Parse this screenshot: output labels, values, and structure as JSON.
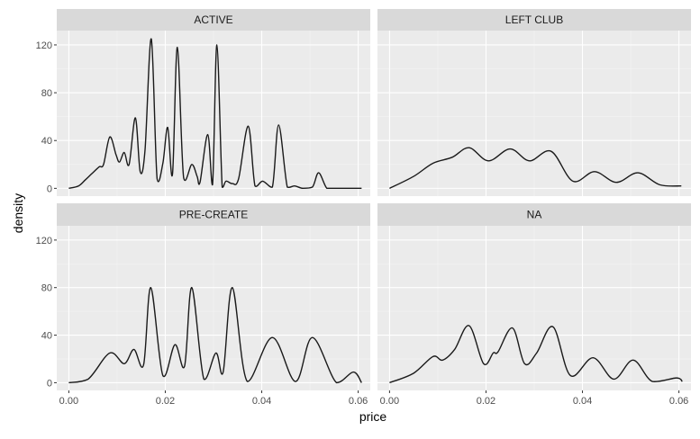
{
  "chart_data": {
    "type": "area",
    "kind": "density facets",
    "xlabel": "price",
    "ylabel": "density",
    "xlim": [
      -0.0025,
      0.0625
    ],
    "ylim": [
      -6.5,
      132
    ],
    "x_ticks": [
      0.0,
      0.02,
      0.04,
      0.06
    ],
    "x_tick_labels": [
      "0.00",
      "0.02",
      "0.04",
      "0.06"
    ],
    "y_ticks": [
      0,
      40,
      80,
      120
    ],
    "y_tick_labels": [
      "0",
      "40",
      "80",
      "120"
    ],
    "grid": true,
    "panels": [
      {
        "label": "ACTIVE",
        "x": [
          0.0,
          0.002,
          0.0034,
          0.0047,
          0.0063,
          0.0072,
          0.0085,
          0.0098,
          0.0105,
          0.0115,
          0.0125,
          0.0138,
          0.0148,
          0.0158,
          0.0171,
          0.0183,
          0.0195,
          0.0205,
          0.0215,
          0.0225,
          0.0238,
          0.0255,
          0.0266,
          0.0272,
          0.0288,
          0.0298,
          0.0307,
          0.0318,
          0.0326,
          0.0339,
          0.0352,
          0.0372,
          0.0386,
          0.0402,
          0.0422,
          0.0435,
          0.0453,
          0.0468,
          0.0485,
          0.0505,
          0.0518,
          0.0535,
          0.0552,
          0.0572,
          0.0594,
          0.0607
        ],
        "y": [
          0,
          2,
          7,
          12,
          18,
          20,
          43,
          28,
          22,
          30,
          20,
          59,
          14,
          32,
          125,
          8,
          21,
          51,
          12,
          118,
          9,
          20,
          10,
          5,
          45,
          3,
          120,
          1,
          6,
          4,
          8,
          52,
          2,
          6,
          1,
          53,
          1,
          2,
          0,
          1,
          13,
          0,
          0,
          0,
          0,
          0
        ]
      },
      {
        "label": "LEFT CLUB",
        "x": [
          0.0,
          0.005,
          0.009,
          0.013,
          0.0165,
          0.0205,
          0.025,
          0.029,
          0.0335,
          0.038,
          0.0425,
          0.047,
          0.0515,
          0.056,
          0.0605
        ],
        "y": [
          0,
          10,
          21,
          26,
          34,
          23,
          33,
          23,
          31,
          6,
          14,
          5,
          13,
          3,
          2
        ]
      },
      {
        "label": "PRE-CREATE",
        "x": [
          0.0,
          0.004,
          0.0085,
          0.0115,
          0.0135,
          0.0155,
          0.017,
          0.0195,
          0.022,
          0.024,
          0.0255,
          0.028,
          0.0305,
          0.032,
          0.0339,
          0.037,
          0.0422,
          0.047,
          0.0505,
          0.0555,
          0.059,
          0.0607
        ],
        "y": [
          0,
          3,
          25,
          16,
          28,
          15,
          80,
          6,
          32,
          14,
          80,
          3,
          25,
          9,
          80,
          1,
          38,
          1,
          38,
          0,
          9,
          0
        ],
        "fill": false
      },
      {
        "label": "NA",
        "x": [
          0.0,
          0.005,
          0.009,
          0.011,
          0.0135,
          0.0165,
          0.0195,
          0.0215,
          0.0225,
          0.0255,
          0.028,
          0.0305,
          0.0339,
          0.0375,
          0.0422,
          0.0465,
          0.0505,
          0.0545,
          0.0595,
          0.0607
        ],
        "y": [
          0,
          8,
          22,
          19,
          28,
          48,
          16,
          25,
          26,
          46,
          16,
          25,
          47,
          6,
          21,
          3,
          19,
          1,
          4,
          1
        ]
      }
    ]
  }
}
